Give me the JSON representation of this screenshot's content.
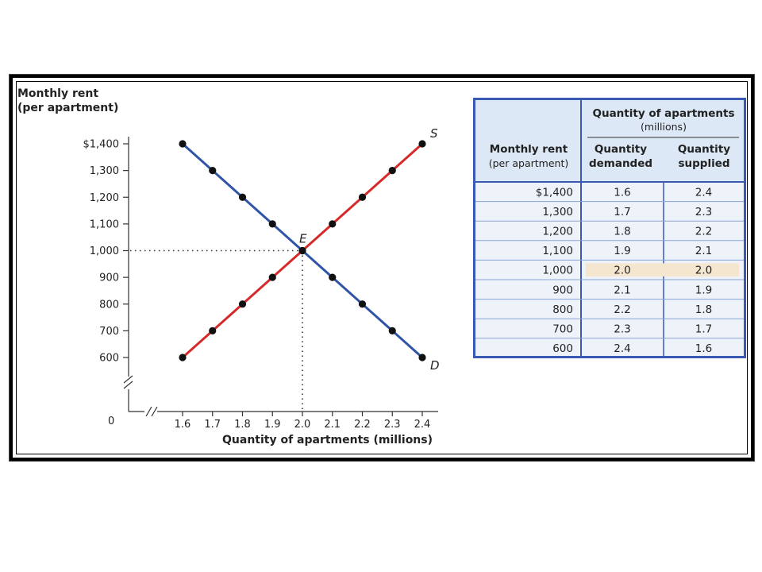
{
  "chart_data": {
    "type": "line",
    "ylabel_lines": [
      "Monthly rent",
      "(per apartment)"
    ],
    "xlabel": "Quantity of apartments (millions)",
    "y_ticks": [
      "$1,400",
      "1,300",
      "1,200",
      "1,100",
      "1,000",
      "900",
      "800",
      "700",
      "600"
    ],
    "y_tick_values": [
      1400,
      1300,
      1200,
      1100,
      1000,
      900,
      800,
      700,
      600
    ],
    "x_ticks": [
      "1.6",
      "1.7",
      "1.8",
      "1.9",
      "2.0",
      "2.1",
      "2.2",
      "2.3",
      "2.4"
    ],
    "x_tick_values": [
      1.6,
      1.7,
      1.8,
      1.9,
      2.0,
      2.1,
      2.2,
      2.3,
      2.4
    ],
    "origin_label": "0",
    "xlim": [
      1.6,
      2.4
    ],
    "ylim": [
      600,
      1400
    ],
    "series": [
      {
        "name": "D",
        "color": "#2f54a8",
        "x": [
          1.6,
          1.7,
          1.8,
          1.9,
          2.0,
          2.1,
          2.2,
          2.3,
          2.4
        ],
        "y": [
          1400,
          1300,
          1200,
          1100,
          1000,
          900,
          800,
          700,
          600
        ]
      },
      {
        "name": "S",
        "color": "#d62a2a",
        "x": [
          1.6,
          1.7,
          1.8,
          1.9,
          2.0,
          2.1,
          2.2,
          2.3,
          2.4
        ],
        "y": [
          600,
          700,
          800,
          900,
          1000,
          1100,
          1200,
          1300,
          1400
        ]
      }
    ],
    "equilibrium": {
      "label": "E",
      "x": 2.0,
      "y": 1000
    },
    "axis_breaks": true,
    "grid": false
  },
  "table": {
    "group_header": "Quantity of apartments",
    "group_subheader": "(millions)",
    "col0_lines": [
      "Monthly rent",
      "(per apartment)"
    ],
    "col1_lines": [
      "Quantity",
      "demanded"
    ],
    "col2_lines": [
      "Quantity",
      "supplied"
    ],
    "rows": [
      [
        "$1,400",
        "1.6",
        "2.4"
      ],
      [
        "1,300",
        "1.7",
        "2.3"
      ],
      [
        "1,200",
        "1.8",
        "2.2"
      ],
      [
        "1,100",
        "1.9",
        "2.1"
      ],
      [
        "1,000",
        "2.0",
        "2.0"
      ],
      [
        "900",
        "2.1",
        "1.9"
      ],
      [
        "800",
        "2.2",
        "1.8"
      ],
      [
        "700",
        "2.3",
        "1.7"
      ],
      [
        "600",
        "2.4",
        "1.6"
      ]
    ],
    "highlight_row": 4,
    "highlight_color": "#f5e6cf",
    "border_color": "#3a59b2",
    "fill_color": "#dde8f6"
  }
}
